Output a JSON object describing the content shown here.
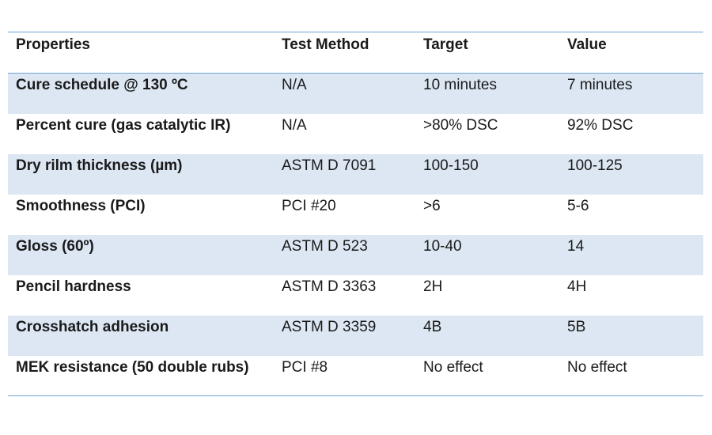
{
  "table": {
    "headers": [
      "Properties",
      "Test Method",
      "Target",
      "Value"
    ],
    "rows": [
      {
        "property": "Cure schedule @ 130 ºC",
        "method": "N/A",
        "target": "10 minutes",
        "value": "7 minutes"
      },
      {
        "property": "Percent cure (gas catalytic IR)",
        "method": "N/A",
        "target": ">80% DSC",
        "value": "92% DSC"
      },
      {
        "property": "Dry rilm thickness (µm)",
        "method": "ASTM D 7091",
        "target": "100-150",
        "value": "100-125"
      },
      {
        "property": "Smoothness (PCI)",
        "method": "PCI #20",
        "target": ">6",
        "value": "5-6"
      },
      {
        "property": "Gloss (60º)",
        "method": "ASTM D 523",
        "target": "10-40",
        "value": "14"
      },
      {
        "property": "Pencil hardness",
        "method": "ASTM D 3363",
        "target": "2H",
        "value": "4H"
      },
      {
        "property": "Crosshatch adhesion",
        "method": "ASTM D 3359",
        "target": "4B",
        "value": "5B"
      },
      {
        "property": "MEK resistance (50 double rubs)",
        "method": "PCI #8",
        "target": "No effect",
        "value": "No effect"
      }
    ]
  },
  "colors": {
    "rule": "#6fa4d4",
    "row_shade": "#dce7f3"
  }
}
